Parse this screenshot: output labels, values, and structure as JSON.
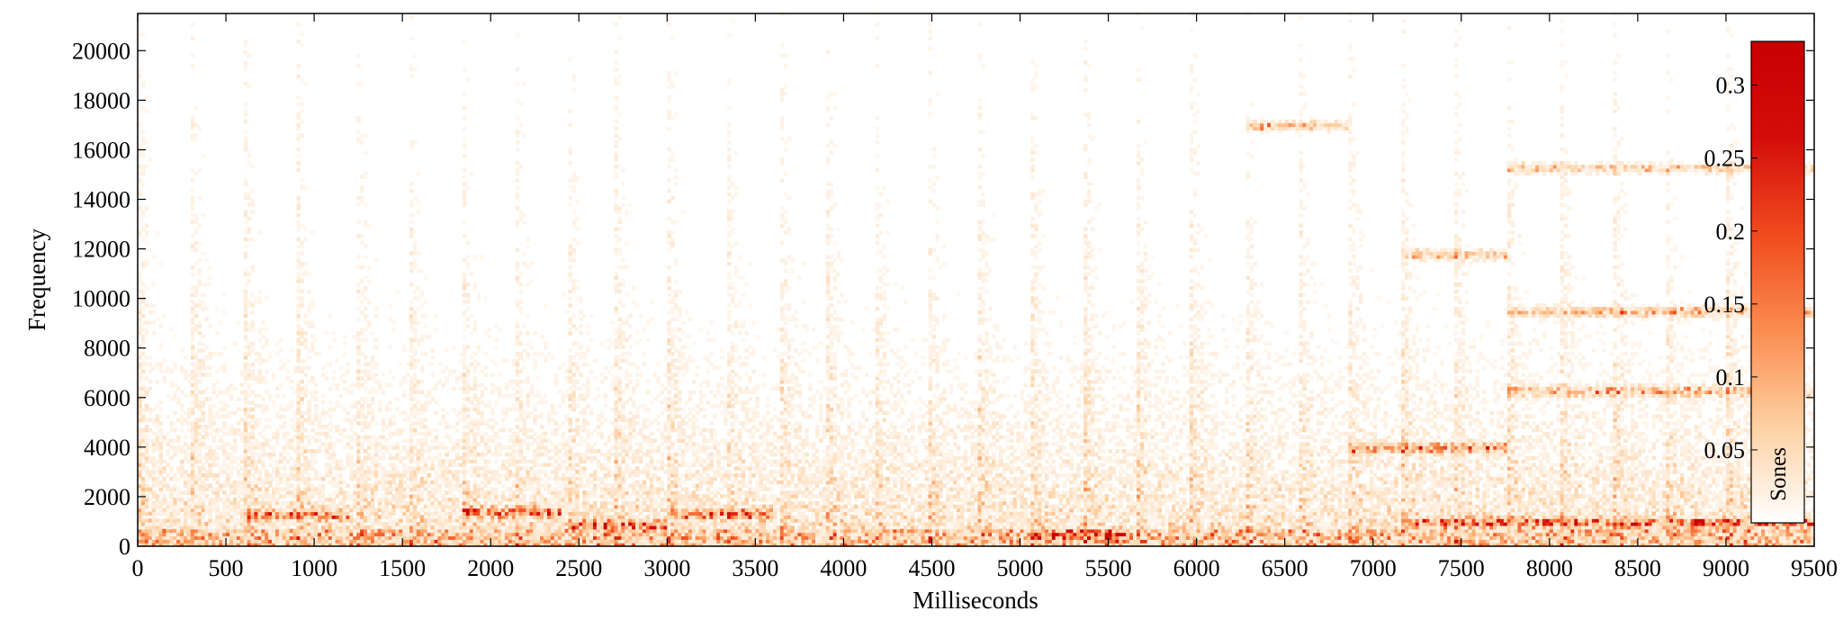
{
  "chart_data": {
    "type": "heatmap",
    "xlabel": "Milliseconds",
    "ylabel": "Frequency",
    "xlim": [
      0,
      9500
    ],
    "ylim": [
      0,
      21500
    ],
    "x_ticks": [
      0,
      500,
      1000,
      1500,
      2000,
      2500,
      3000,
      3500,
      4000,
      4500,
      5000,
      5500,
      6000,
      6500,
      7000,
      7500,
      8000,
      8500,
      9000,
      9500
    ],
    "x_tick_labels": [
      "0",
      "500",
      "1000",
      "1500",
      "2000",
      "2500",
      "3000",
      "3500",
      "4000",
      "4500",
      "5000",
      "5500",
      "6000",
      "6500",
      "7000",
      "7500",
      "8000",
      "8500",
      "9000",
      "9500"
    ],
    "y_ticks": [
      0,
      2000,
      4000,
      6000,
      8000,
      10000,
      12000,
      14000,
      16000,
      18000,
      20000
    ],
    "y_tick_labels": [
      "0",
      "2000",
      "4000",
      "6000",
      "8000",
      "10000",
      "12000",
      "14000",
      "16000",
      "18000",
      "20000"
    ],
    "colorbar": {
      "label": "Sones",
      "range": [
        0,
        0.33
      ],
      "ticks": [
        0.05,
        0.1,
        0.15,
        0.2,
        0.25,
        0.3
      ],
      "tick_labels": [
        "0.05",
        "0.1",
        "0.15",
        "0.2",
        "0.25",
        "0.3"
      ],
      "colormap": [
        "#ffffff",
        "#fdd0a2",
        "#fb8c4f",
        "#f04a1e",
        "#d40d0b",
        "#c80000"
      ],
      "placement": "inside-right"
    },
    "grid": false,
    "onsets_ms": [
      0,
      300,
      600,
      900,
      1230,
      1530,
      1830,
      2130,
      2430,
      2700,
      3000,
      3330,
      3640,
      3900,
      4170,
      4470,
      4760,
      5060,
      5360,
      5660,
      5960,
      6270,
      6570,
      6860,
      7160,
      7460,
      7760,
      8060,
      8360,
      8650,
      9000
    ],
    "sustained_bands": [
      {
        "t_start": 600,
        "t_end": 1200,
        "freq": 1200,
        "level": 0.2
      },
      {
        "t_start": 1830,
        "t_end": 2400,
        "freq": 1300,
        "level": 0.2
      },
      {
        "t_start": 2430,
        "t_end": 3000,
        "freq": 800,
        "level": 0.22
      },
      {
        "t_start": 3000,
        "t_end": 3600,
        "freq": 1250,
        "level": 0.2
      },
      {
        "t_start": 5060,
        "t_end": 5600,
        "freq": 400,
        "level": 0.24
      },
      {
        "t_start": 6270,
        "t_end": 6860,
        "freq": 16900,
        "level": 0.12
      },
      {
        "t_start": 6860,
        "t_end": 7760,
        "freq": 3900,
        "level": 0.2
      },
      {
        "t_start": 7160,
        "t_end": 7760,
        "freq": 11700,
        "level": 0.12
      },
      {
        "t_start": 7760,
        "t_end": 9500,
        "freq": 15200,
        "level": 0.1
      },
      {
        "t_start": 7760,
        "t_end": 9500,
        "freq": 9400,
        "level": 0.12
      },
      {
        "t_start": 7760,
        "t_end": 9500,
        "freq": 6200,
        "level": 0.12
      },
      {
        "t_start": 7160,
        "t_end": 9500,
        "freq": 900,
        "level": 0.2
      }
    ]
  }
}
